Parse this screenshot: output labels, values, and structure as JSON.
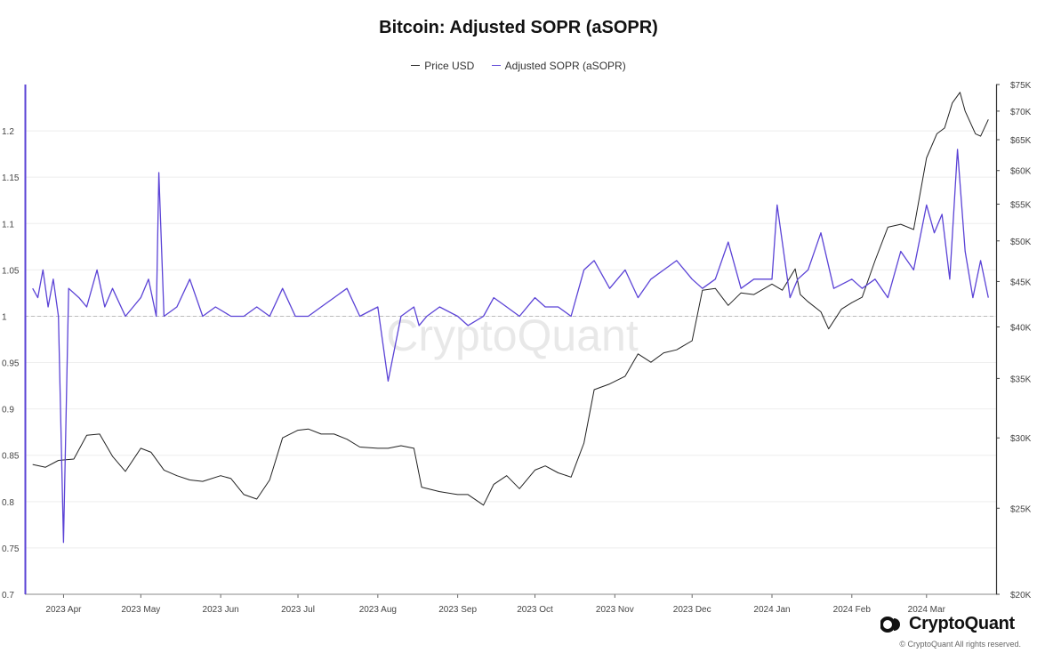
{
  "chart_data": {
    "type": "line",
    "title": "Bitcoin: Adjusted SOPR (aSOPR)",
    "series": [
      {
        "name": "Price USD",
        "color": "#222222",
        "axis": "right",
        "x": [
          "2023-03-20",
          "2023-03-25",
          "2023-03-30",
          "2023-04-05",
          "2023-04-10",
          "2023-04-15",
          "2023-04-20",
          "2023-04-25",
          "2023-05-01",
          "2023-05-05",
          "2023-05-10",
          "2023-05-15",
          "2023-05-20",
          "2023-05-25",
          "2023-06-01",
          "2023-06-05",
          "2023-06-10",
          "2023-06-15",
          "2023-06-20",
          "2023-06-25",
          "2023-07-01",
          "2023-07-05",
          "2023-07-10",
          "2023-07-15",
          "2023-07-20",
          "2023-07-25",
          "2023-08-01",
          "2023-08-05",
          "2023-08-10",
          "2023-08-15",
          "2023-08-18",
          "2023-08-25",
          "2023-09-01",
          "2023-09-05",
          "2023-09-11",
          "2023-09-15",
          "2023-09-20",
          "2023-09-25",
          "2023-10-01",
          "2023-10-05",
          "2023-10-10",
          "2023-10-15",
          "2023-10-20",
          "2023-10-24",
          "2023-10-30",
          "2023-11-05",
          "2023-11-10",
          "2023-11-15",
          "2023-11-20",
          "2023-11-25",
          "2023-12-01",
          "2023-12-05",
          "2023-12-10",
          "2023-12-15",
          "2023-12-20",
          "2023-12-25",
          "2024-01-01",
          "2024-01-05",
          "2024-01-10",
          "2024-01-12",
          "2024-01-15",
          "2024-01-20",
          "2024-01-23",
          "2024-01-28",
          "2024-02-01",
          "2024-02-05",
          "2024-02-10",
          "2024-02-15",
          "2024-02-20",
          "2024-02-25",
          "2024-03-01",
          "2024-03-05",
          "2024-03-08",
          "2024-03-11",
          "2024-03-14",
          "2024-03-16",
          "2024-03-20",
          "2024-03-22",
          "2024-03-25"
        ],
        "values": [
          28000,
          27800,
          28300,
          28400,
          30200,
          30300,
          28600,
          27500,
          29200,
          28900,
          27600,
          27200,
          26900,
          26800,
          27200,
          27000,
          25900,
          25600,
          26900,
          30000,
          30600,
          30700,
          30300,
          30300,
          29900,
          29300,
          29200,
          29200,
          29400,
          29200,
          26400,
          26100,
          25900,
          25900,
          25200,
          26600,
          27200,
          26300,
          27600,
          27900,
          27400,
          27100,
          29600,
          34000,
          34500,
          35200,
          37300,
          36500,
          37400,
          37700,
          38600,
          44000,
          44200,
          42300,
          43700,
          43500,
          44700,
          44000,
          46500,
          43500,
          42700,
          41600,
          39800,
          41900,
          42600,
          43200,
          47500,
          51800,
          52200,
          51500,
          62000,
          66000,
          67000,
          71500,
          73500,
          70000,
          66000,
          65600,
          68500
        ],
        "ylim": [
          20000,
          75000
        ]
      },
      {
        "name": "Adjusted SOPR (aSOPR)",
        "color": "#5b43d6",
        "axis": "left",
        "x": [
          "2023-03-20",
          "2023-03-22",
          "2023-03-24",
          "2023-03-26",
          "2023-03-28",
          "2023-03-30",
          "2023-04-01",
          "2023-04-03",
          "2023-04-07",
          "2023-04-10",
          "2023-04-14",
          "2023-04-17",
          "2023-04-20",
          "2023-04-25",
          "2023-04-28",
          "2023-05-01",
          "2023-05-04",
          "2023-05-07",
          "2023-05-08",
          "2023-05-10",
          "2023-05-15",
          "2023-05-20",
          "2023-05-25",
          "2023-05-30",
          "2023-06-05",
          "2023-06-10",
          "2023-06-15",
          "2023-06-20",
          "2023-06-25",
          "2023-06-30",
          "2023-07-05",
          "2023-07-10",
          "2023-07-15",
          "2023-07-20",
          "2023-07-25",
          "2023-08-01",
          "2023-08-05",
          "2023-08-10",
          "2023-08-15",
          "2023-08-17",
          "2023-08-20",
          "2023-08-25",
          "2023-09-01",
          "2023-09-05",
          "2023-09-11",
          "2023-09-15",
          "2023-09-20",
          "2023-09-25",
          "2023-10-01",
          "2023-10-05",
          "2023-10-10",
          "2023-10-15",
          "2023-10-20",
          "2023-10-24",
          "2023-10-30",
          "2023-11-05",
          "2023-11-10",
          "2023-11-15",
          "2023-11-20",
          "2023-11-25",
          "2023-12-01",
          "2023-12-05",
          "2023-12-10",
          "2023-12-15",
          "2023-12-20",
          "2023-12-25",
          "2024-01-01",
          "2024-01-03",
          "2024-01-08",
          "2024-01-11",
          "2024-01-15",
          "2024-01-20",
          "2024-01-25",
          "2024-02-01",
          "2024-02-05",
          "2024-02-10",
          "2024-02-15",
          "2024-02-20",
          "2024-02-25",
          "2024-03-01",
          "2024-03-04",
          "2024-03-07",
          "2024-03-10",
          "2024-03-13",
          "2024-03-16",
          "2024-03-19",
          "2024-03-22",
          "2024-03-25"
        ],
        "values": [
          1.03,
          1.02,
          1.05,
          1.01,
          1.04,
          1.0,
          0.756,
          1.03,
          1.02,
          1.01,
          1.05,
          1.01,
          1.03,
          1.0,
          1.01,
          1.02,
          1.04,
          1.0,
          1.155,
          1.0,
          1.01,
          1.04,
          1.0,
          1.01,
          1.0,
          1.0,
          1.01,
          1.0,
          1.03,
          1.0,
          1.0,
          1.01,
          1.02,
          1.03,
          1.0,
          1.01,
          0.93,
          1.0,
          1.01,
          0.99,
          1.0,
          1.01,
          1.0,
          0.99,
          1.0,
          1.02,
          1.01,
          1.0,
          1.02,
          1.01,
          1.01,
          1.0,
          1.05,
          1.06,
          1.03,
          1.05,
          1.02,
          1.04,
          1.05,
          1.06,
          1.04,
          1.03,
          1.04,
          1.08,
          1.03,
          1.04,
          1.04,
          1.12,
          1.02,
          1.04,
          1.05,
          1.09,
          1.03,
          1.04,
          1.03,
          1.04,
          1.02,
          1.07,
          1.05,
          1.12,
          1.09,
          1.11,
          1.04,
          1.18,
          1.07,
          1.02,
          1.06,
          1.02
        ],
        "ylim": [
          0.7,
          1.25
        ]
      }
    ],
    "left_axis": {
      "ticks": [
        {
          "value": 0.7,
          "label": "0.7"
        },
        {
          "value": 0.75,
          "label": "0.75"
        },
        {
          "value": 0.8,
          "label": "0.8"
        },
        {
          "value": 0.85,
          "label": "0.85"
        },
        {
          "value": 0.9,
          "label": "0.9"
        },
        {
          "value": 0.95,
          "label": "0.95"
        },
        {
          "value": 1.0,
          "label": "1"
        },
        {
          "value": 1.05,
          "label": "1.05"
        },
        {
          "value": 1.1,
          "label": "1.1"
        },
        {
          "value": 1.15,
          "label": "1.15"
        },
        {
          "value": 1.2,
          "label": "1.2"
        }
      ]
    },
    "right_axis": {
      "scale": "log",
      "ticks": [
        {
          "value": 20000,
          "label": "$20K"
        },
        {
          "value": 25000,
          "label": "$25K"
        },
        {
          "value": 30000,
          "label": "$30K"
        },
        {
          "value": 35000,
          "label": "$35K"
        },
        {
          "value": 40000,
          "label": "$40K"
        },
        {
          "value": 45000,
          "label": "$45K"
        },
        {
          "value": 50000,
          "label": "$50K"
        },
        {
          "value": 55000,
          "label": "$55K"
        },
        {
          "value": 60000,
          "label": "$60K"
        },
        {
          "value": 65000,
          "label": "$65K"
        },
        {
          "value": 70000,
          "label": "$70K"
        },
        {
          "value": 75000,
          "label": "$75K"
        }
      ]
    },
    "x_axis": {
      "range": [
        "2023-03-17",
        "2024-03-28"
      ],
      "ticks": [
        {
          "date": "2023-04-01",
          "label": "2023 Apr"
        },
        {
          "date": "2023-05-01",
          "label": "2023 May"
        },
        {
          "date": "2023-06-01",
          "label": "2023 Jun"
        },
        {
          "date": "2023-07-01",
          "label": "2023 Jul"
        },
        {
          "date": "2023-08-01",
          "label": "2023 Aug"
        },
        {
          "date": "2023-09-01",
          "label": "2023 Sep"
        },
        {
          "date": "2023-10-01",
          "label": "2023 Oct"
        },
        {
          "date": "2023-11-01",
          "label": "2023 Nov"
        },
        {
          "date": "2023-12-01",
          "label": "2023 Dec"
        },
        {
          "date": "2024-01-01",
          "label": "2024 Jan"
        },
        {
          "date": "2024-02-01",
          "label": "2024 Feb"
        },
        {
          "date": "2024-03-01",
          "label": "2024 Mar"
        }
      ]
    },
    "reference_line": {
      "value": 1.0,
      "style": "dashed"
    },
    "grid": true,
    "legend_position": "top-center",
    "watermark": "CryptoQuant"
  },
  "branding": {
    "name": "CryptoQuant",
    "copyright": "© CryptoQuant All rights reserved."
  }
}
